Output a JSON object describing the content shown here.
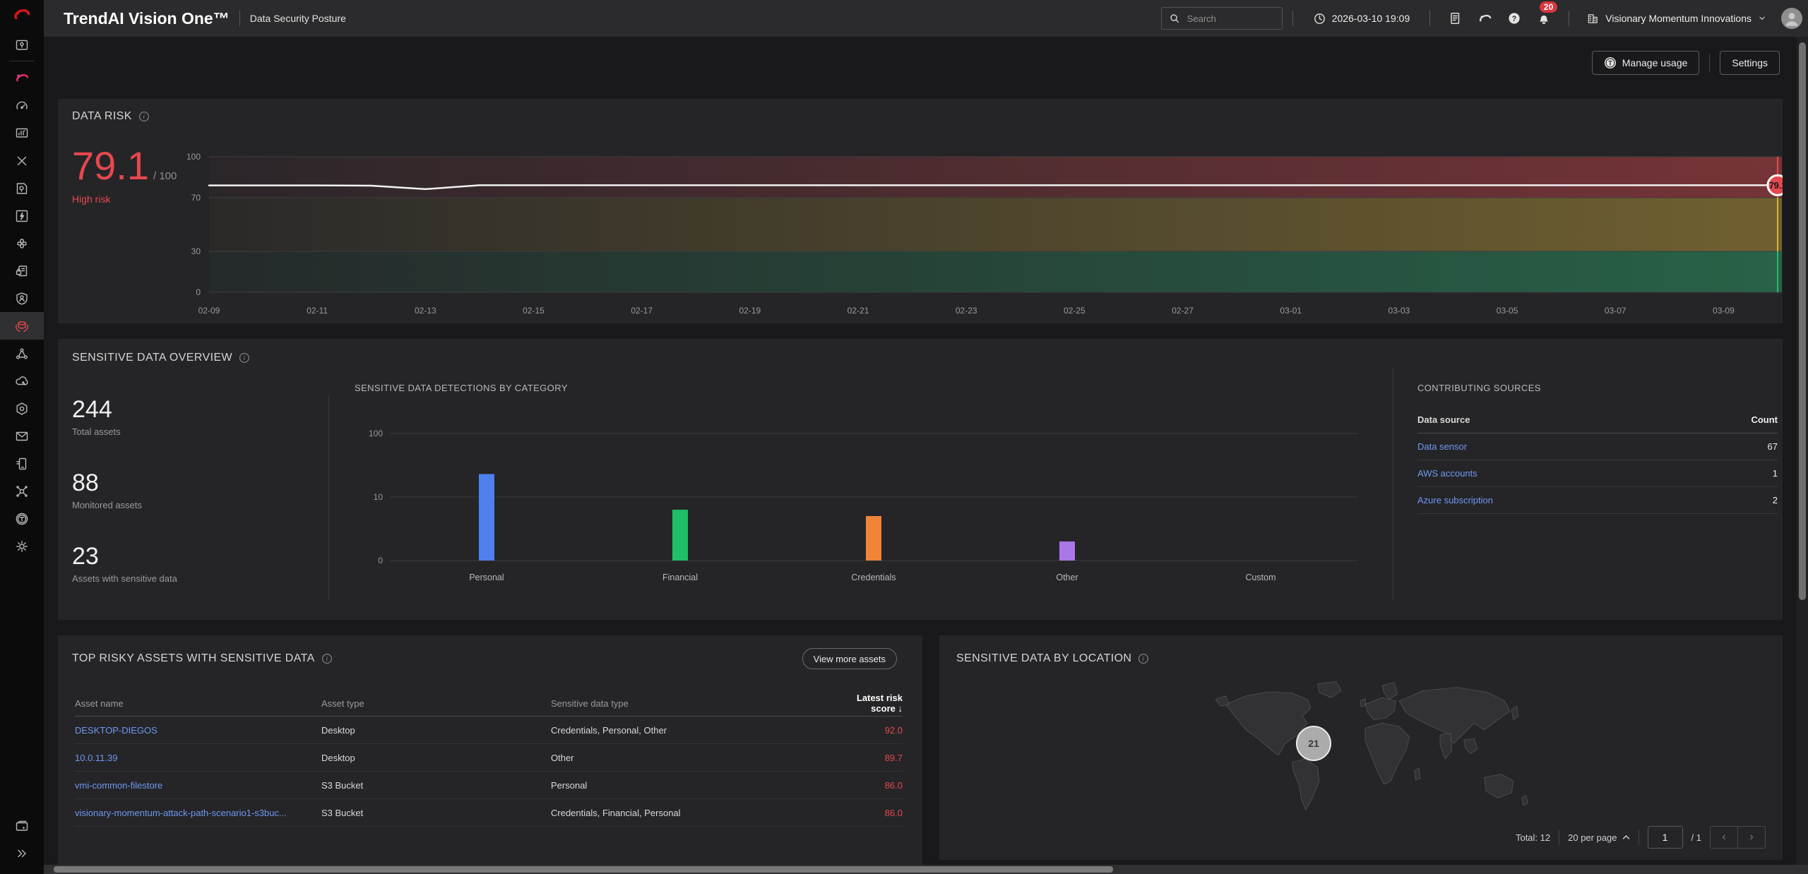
{
  "topbar": {
    "title": "TrendAI Vision One™",
    "subtitle": "Data Security Posture",
    "search_placeholder": "Search",
    "datetime": "2026-03-10 19:09",
    "notifications": "20",
    "company": "Visionary Momentum Innovations"
  },
  "toolbar": {
    "manage_usage_label": "Manage usage",
    "settings_label": "Settings"
  },
  "data_risk": {
    "title": "DATA RISK",
    "score": "79.1",
    "score_max": "/ 100",
    "level": "High risk"
  },
  "overview": {
    "title": "SENSITIVE DATA OVERVIEW",
    "stats": [
      {
        "value": "244",
        "label": "Total assets"
      },
      {
        "value": "88",
        "label": "Monitored assets"
      },
      {
        "value": "23",
        "label": "Assets with sensitive data"
      }
    ],
    "category_chart_title": "SENSITIVE DATA DETECTIONS BY CATEGORY",
    "contributing": {
      "title": "CONTRIBUTING SOURCES",
      "col_source": "Data source",
      "col_count": "Count",
      "rows": [
        {
          "source": "Data sensor",
          "count": "67"
        },
        {
          "source": "AWS accounts",
          "count": "1"
        },
        {
          "source": "Azure subscription",
          "count": "2"
        }
      ]
    }
  },
  "risky_assets": {
    "title": "TOP RISKY ASSETS WITH SENSITIVE DATA",
    "view_more_label": "View more assets",
    "col_name": "Asset name",
    "col_type": "Asset type",
    "col_data": "Sensitive data type",
    "col_score": "Latest risk score",
    "rows": [
      {
        "name": "DESKTOP-DIEGOS",
        "type": "Desktop",
        "data_type": "Credentials, Personal, Other",
        "score": "92.0"
      },
      {
        "name": "10.0.11.39",
        "type": "Desktop",
        "data_type": "Other",
        "score": "89.7"
      },
      {
        "name": "vmi-common-filestore",
        "type": "S3 Bucket",
        "data_type": "Personal",
        "score": "86.0"
      },
      {
        "name": "visionary-momentum-attack-path-scenario1-s3buc...",
        "type": "S3 Bucket",
        "data_type": "Credentials, Financial, Personal",
        "score": "86.0"
      }
    ]
  },
  "location": {
    "title": "SENSITIVE DATA BY LOCATION",
    "bubble_count": "21"
  },
  "pagination": {
    "total": "Total: 12",
    "per_page": "20 per page",
    "page": "1",
    "of": "/ 1"
  },
  "glyphs": {
    "info_i": "i",
    "question": "?",
    "credits_t": "T",
    "sort_desc": "↓",
    "prev": "‹",
    "next": "›"
  },
  "chart_data": [
    {
      "type": "line",
      "title": "Data risk score trend",
      "x_labels": [
        "02-09",
        "02-11",
        "02-13",
        "02-15",
        "02-17",
        "02-19",
        "02-21",
        "02-23",
        "02-25",
        "02-27",
        "03-01",
        "03-03",
        "03-05",
        "03-07",
        "03-09"
      ],
      "values": [
        79,
        79,
        79,
        78.8,
        76.3,
        79.1,
        79.1,
        79.1,
        79.1,
        79.1,
        79.1,
        79.1,
        79.1,
        79.1,
        79.1,
        79.1,
        79.1,
        79.1,
        79.1,
        79.1,
        79.1,
        79.1,
        79.1,
        79.1,
        79.1,
        79.1,
        79.1,
        79.1,
        79.1,
        79.1
      ],
      "end_label": "79.1",
      "yticks": [
        100,
        70,
        30,
        0
      ],
      "ylim": [
        0,
        100
      ],
      "bands": [
        {
          "name": "high",
          "range": [
            70,
            100
          ],
          "color": "#e5484d"
        },
        {
          "name": "medium",
          "range": [
            30,
            70
          ],
          "color": "#d8b13c"
        },
        {
          "name": "low",
          "range": [
            0,
            30
          ],
          "color": "#2bb673"
        }
      ],
      "legend": "none",
      "grid": true
    },
    {
      "type": "bar",
      "title": "SENSITIVE DATA DETECTIONS BY CATEGORY",
      "categories": [
        "Personal",
        "Financial",
        "Credentials",
        "Other",
        "Custom"
      ],
      "values": [
        23,
        8,
        7,
        3,
        0
      ],
      "colors": [
        "#4e80ee",
        "#1fbf67",
        "#f08438",
        "#a878e8",
        "#9a9a9a"
      ],
      "yticks": [
        100,
        10,
        0
      ],
      "scale": "log",
      "xlabel": "",
      "ylabel": "",
      "grid": true
    }
  ]
}
